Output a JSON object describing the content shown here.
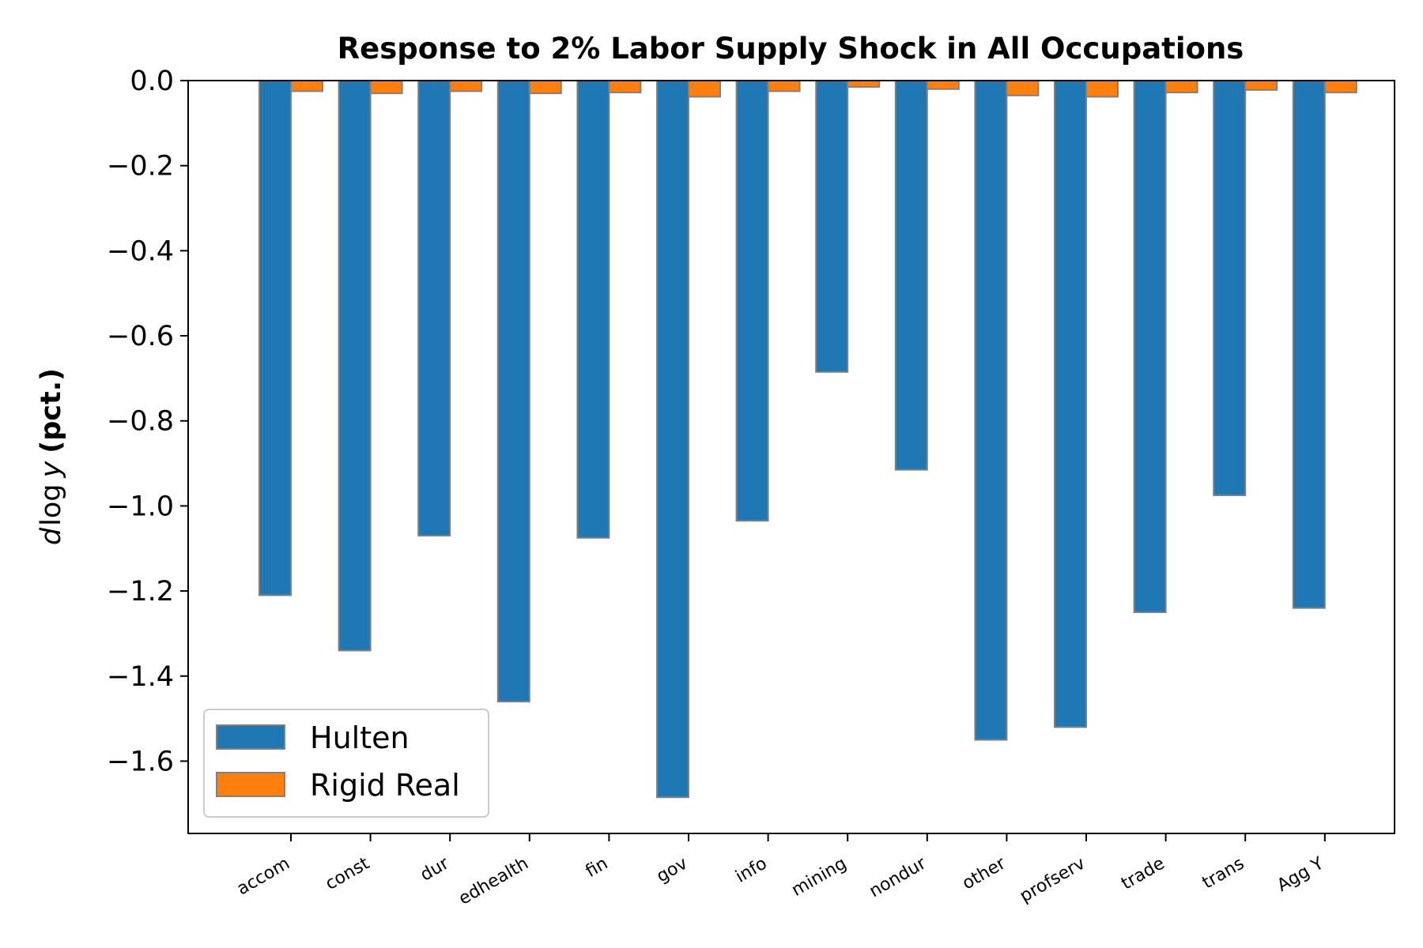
{
  "chart_data": {
    "type": "bar",
    "title": "Response to 2% Labor Supply Shock in All Occupations",
    "ylabel_parts": [
      "d",
      "log",
      "y",
      "(pct.)"
    ],
    "xlabel": "",
    "categories": [
      "accom",
      "const",
      "dur",
      "edhealth",
      "fin",
      "gov",
      "info",
      "mining",
      "nondur",
      "other",
      "profserv",
      "trade",
      "trans",
      "Agg Y"
    ],
    "series": [
      {
        "name": "Hulten",
        "color": "#1f77b4",
        "values": [
          -1.21,
          -1.34,
          -1.07,
          -1.46,
          -1.075,
          -1.685,
          -1.035,
          -0.685,
          -0.915,
          -1.55,
          -1.52,
          -1.25,
          -0.975,
          -1.24
        ]
      },
      {
        "name": "Rigid Real",
        "color": "#ff7f0e",
        "values": [
          -0.025,
          -0.03,
          -0.025,
          -0.03,
          -0.028,
          -0.038,
          -0.025,
          -0.015,
          -0.02,
          -0.035,
          -0.038,
          -0.028,
          -0.022,
          -0.028
        ]
      }
    ],
    "ylim": [
      -1.77,
      0.0
    ],
    "yticks": [
      0.0,
      -0.2,
      -0.4,
      -0.6,
      -0.8,
      -1.0,
      -1.2,
      -1.4,
      -1.6
    ],
    "ytick_labels": [
      "0.0",
      "−0.2",
      "−0.4",
      "−0.6",
      "−0.8",
      "−1.0",
      "−1.2",
      "−1.4",
      "−1.6"
    ],
    "grid": false,
    "legend_position": "bottom-left",
    "edge_color": "#808080"
  }
}
